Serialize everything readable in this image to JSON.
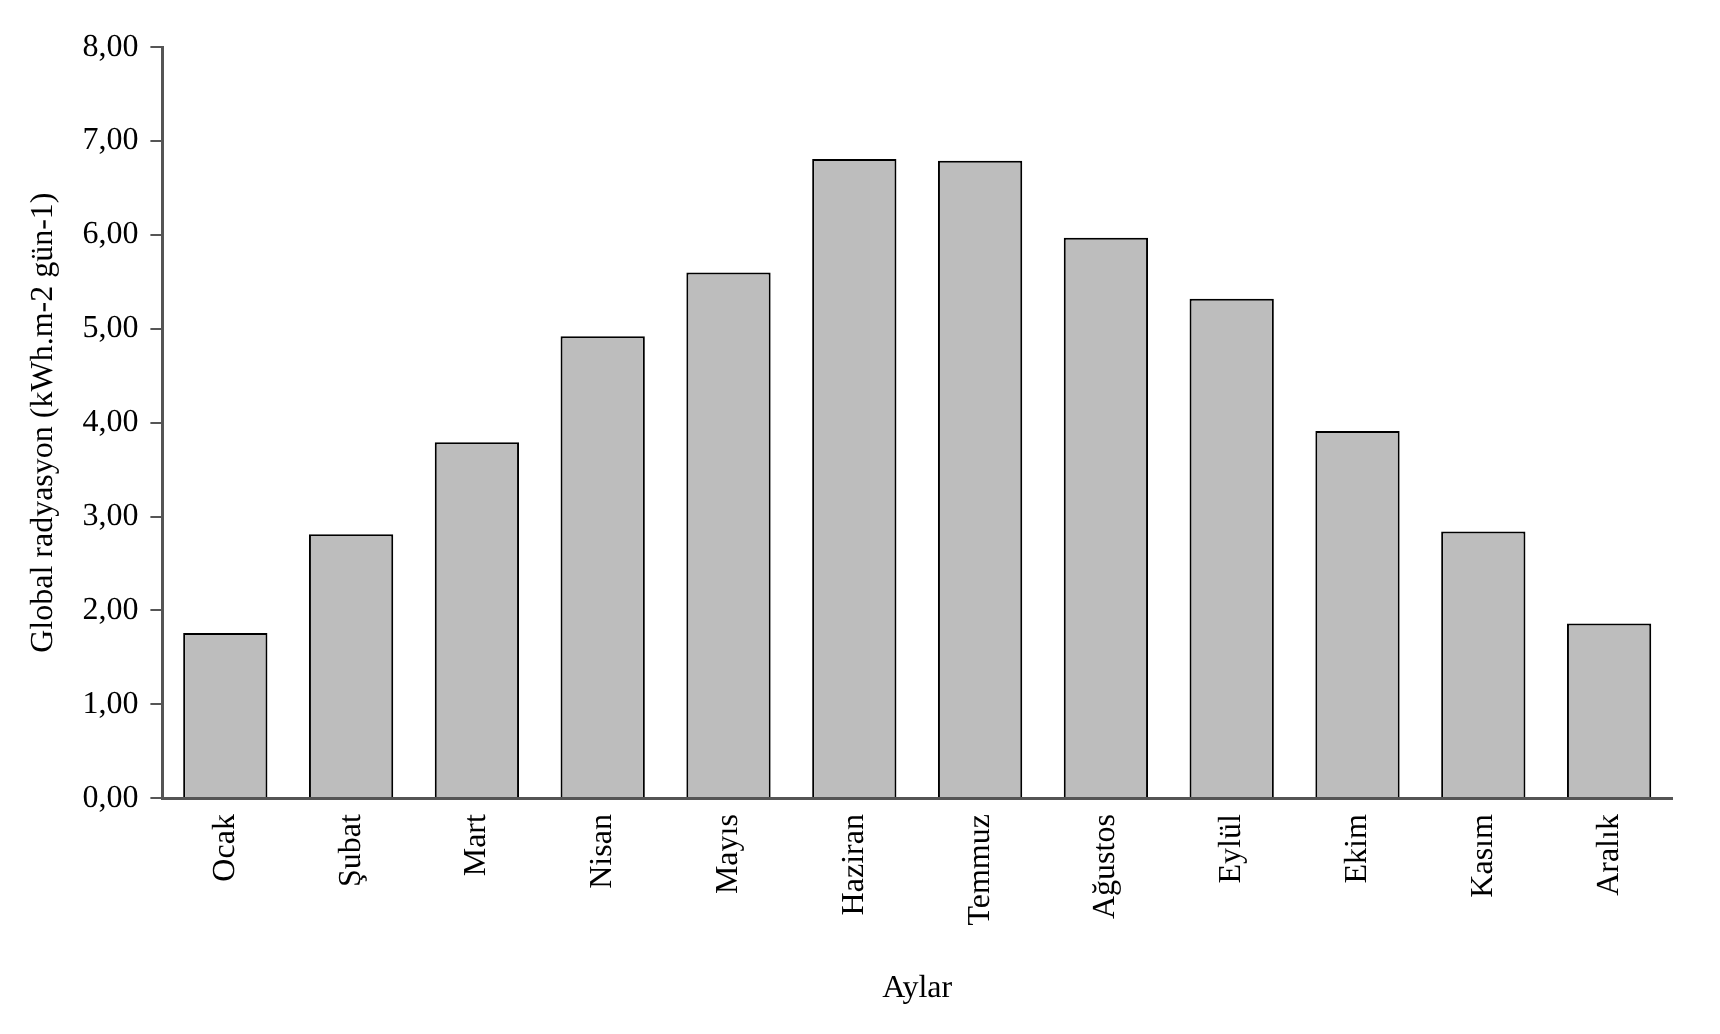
{
  "chart_data": {
    "type": "bar",
    "xlabel": "Aylar",
    "ylabel": "Global radyasyon (kWh.m-2 gün-1)",
    "categories": [
      "Ocak",
      "Şubat",
      "Mart",
      "Nisan",
      "Mayıs",
      "Haziran",
      "Temmuz",
      "Ağustos",
      "Eylül",
      "Ekim",
      "Kasım",
      "Aralık"
    ],
    "values": [
      1.76,
      2.81,
      3.79,
      4.92,
      5.6,
      6.81,
      6.79,
      5.97,
      5.32,
      3.91,
      2.84,
      1.86
    ],
    "color": "#bdbdbd",
    "ylim": [
      0,
      8
    ],
    "yticks": [
      {
        "value": 0,
        "label": "0,00"
      },
      {
        "value": 1,
        "label": "1,00"
      },
      {
        "value": 2,
        "label": "2,00"
      },
      {
        "value": 3,
        "label": "3,00"
      },
      {
        "value": 4,
        "label": "4,00"
      },
      {
        "value": 5,
        "label": "5,00"
      },
      {
        "value": 6,
        "label": "6,00"
      },
      {
        "value": 7,
        "label": "7,00"
      },
      {
        "value": 8,
        "label": "8,00"
      }
    ],
    "grid": false,
    "legend": false
  }
}
